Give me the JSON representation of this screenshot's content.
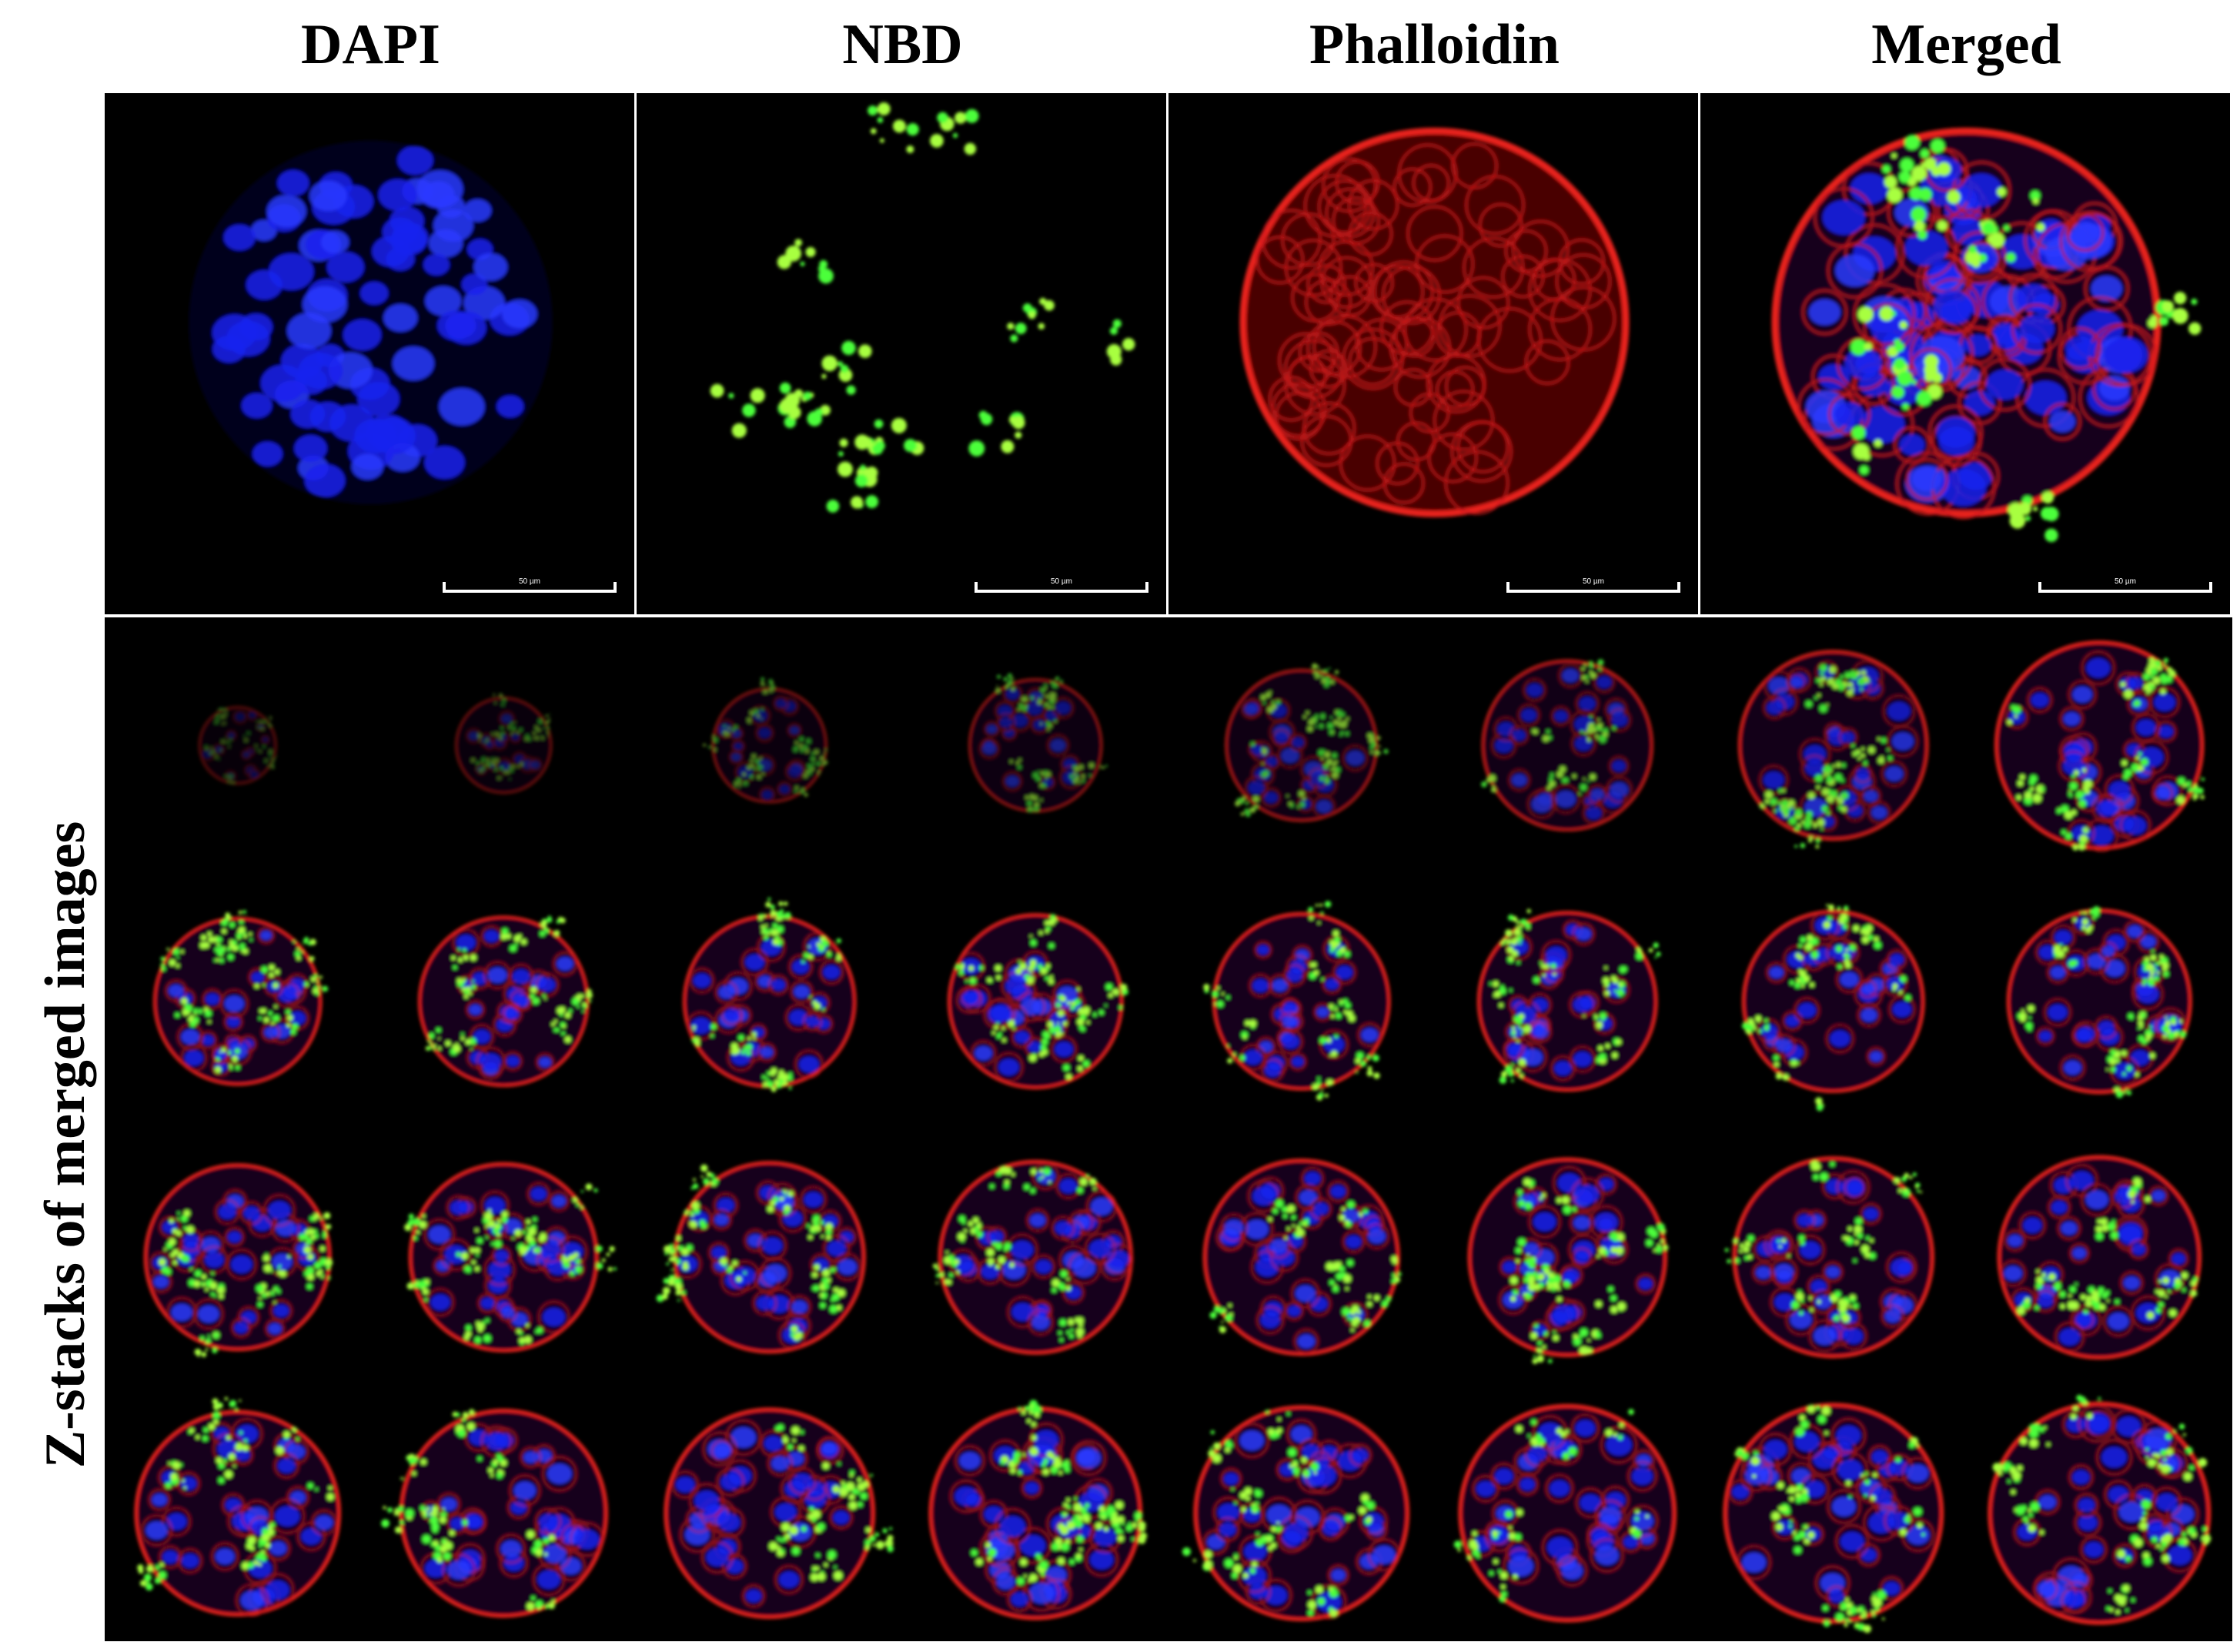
{
  "panels": [
    {
      "title": "DAPI",
      "scale_label": "50 µm"
    },
    {
      "title": "NBD",
      "scale_label": "50 µm"
    },
    {
      "title": "Phalloidin",
      "scale_label": "50 µm"
    },
    {
      "title": "Merged",
      "scale_label": "50 µm"
    }
  ],
  "z_stack": {
    "label": "Z-stacks of merged images"
  }
}
